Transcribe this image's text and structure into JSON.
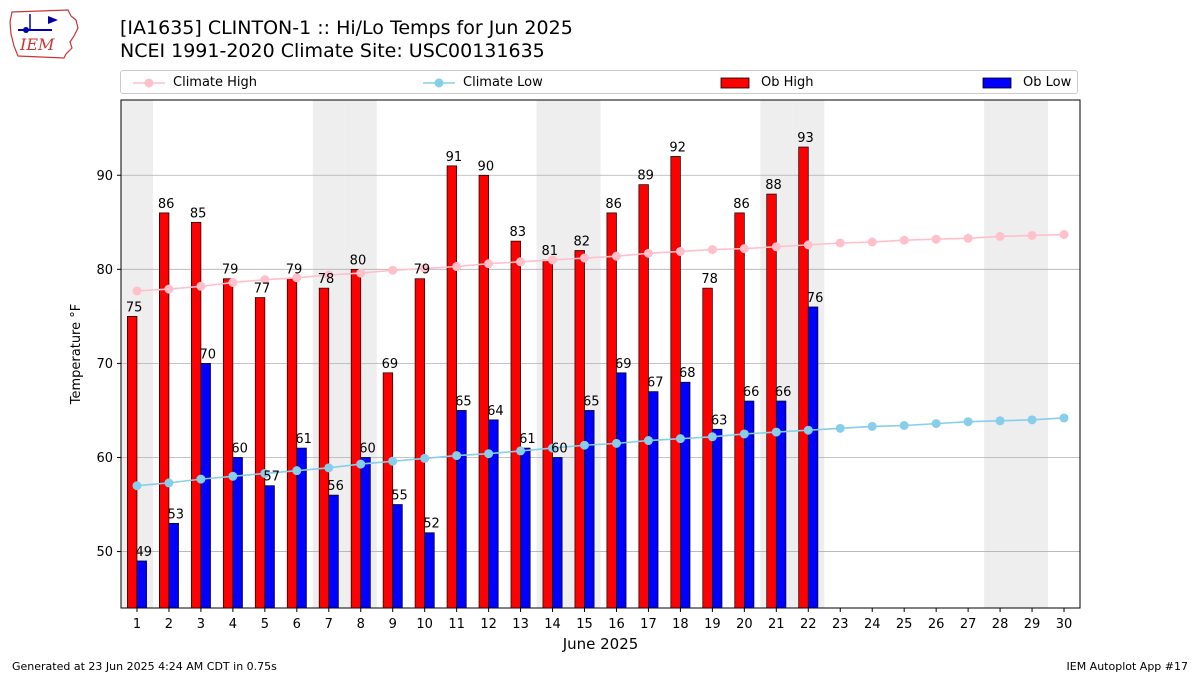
{
  "title_line1": "[IA1635] CLINTON-1 :: Hi/Lo Temps for Jun 2025",
  "title_line2": "NCEI 1991-2020 Climate Site: USC00131635",
  "logo_text": "IEM",
  "footer_left": "Generated at 23 Jun 2025 4:24 AM CDT in 0.75s",
  "footer_right": "IEM Autoplot App #17",
  "colors": {
    "climate_high": "#ffc0cb",
    "climate_low": "#87ceeb",
    "ob_high": "#ff0000",
    "ob_low": "#0000ff",
    "weekend_shade": "#eeeeee"
  },
  "chart_data": {
    "type": "bar",
    "xlabel": "June 2025",
    "ylabel": "Temperature °F",
    "xlim": [
      0.5,
      30.5
    ],
    "ylim": [
      44,
      98
    ],
    "yticks": [
      50,
      60,
      70,
      80,
      90
    ],
    "grid": "horizontal",
    "legend_position": "top",
    "weekend_days": [
      1,
      7,
      8,
      14,
      15,
      21,
      22,
      28,
      29
    ],
    "days": [
      1,
      2,
      3,
      4,
      5,
      6,
      7,
      8,
      9,
      10,
      11,
      12,
      13,
      14,
      15,
      16,
      17,
      18,
      19,
      20,
      21,
      22,
      23,
      24,
      25,
      26,
      27,
      28,
      29,
      30
    ],
    "series": [
      {
        "name": "Climate High",
        "kind": "line",
        "values": [
          77.7,
          77.9,
          78.2,
          78.6,
          78.9,
          79.1,
          79.4,
          79.6,
          79.9,
          80.1,
          80.3,
          80.6,
          80.8,
          81.0,
          81.2,
          81.4,
          81.7,
          81.9,
          82.1,
          82.2,
          82.4,
          82.6,
          82.8,
          82.9,
          83.1,
          83.2,
          83.3,
          83.5,
          83.6,
          83.7
        ]
      },
      {
        "name": "Climate Low",
        "kind": "line",
        "values": [
          57.0,
          57.3,
          57.7,
          58.0,
          58.3,
          58.6,
          58.9,
          59.3,
          59.6,
          59.9,
          60.2,
          60.4,
          60.7,
          61.0,
          61.3,
          61.5,
          61.8,
          62.0,
          62.2,
          62.5,
          62.7,
          62.9,
          63.1,
          63.3,
          63.4,
          63.6,
          63.8,
          63.9,
          64.0,
          64.2
        ]
      },
      {
        "name": "Ob High",
        "kind": "bar",
        "values": [
          75,
          86,
          85,
          79,
          77,
          79,
          78,
          80,
          69,
          79,
          91,
          90,
          83,
          81,
          82,
          86,
          89,
          92,
          78,
          86,
          88,
          93
        ]
      },
      {
        "name": "Ob Low",
        "kind": "bar",
        "values": [
          49,
          53,
          70,
          60,
          57,
          61,
          56,
          60,
          55,
          52,
          65,
          64,
          61,
          60,
          65,
          69,
          67,
          68,
          63,
          66,
          66,
          76
        ]
      }
    ]
  }
}
